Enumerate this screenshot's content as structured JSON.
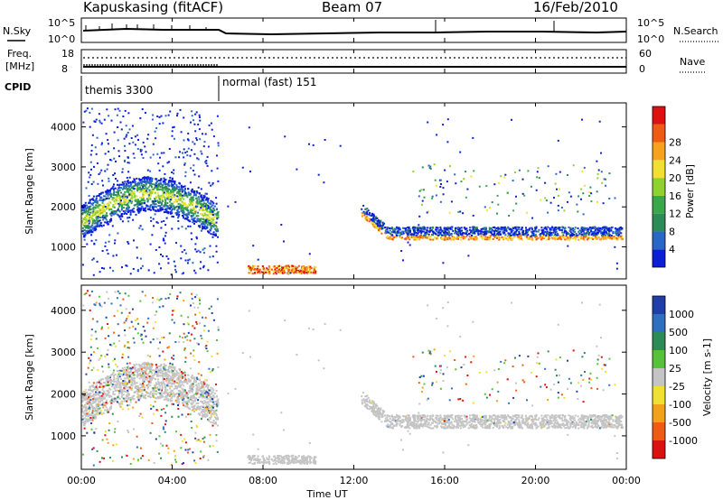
{
  "header": {
    "station": "Kapuskasing (fitACF)",
    "beam": "Beam 07",
    "date": "16/Feb/2010"
  },
  "top_panels": {
    "nsky_label": "N.Sky",
    "nsearch_label": "N.Search",
    "nsky_ticks": [
      "10^5",
      "10^0"
    ],
    "freq_label_1": "Freq.",
    "freq_label_2": "[MHz]",
    "freq_ticks": [
      "18",
      "8"
    ],
    "nave_ticks": [
      "60",
      "0"
    ],
    "nave_label": "Nave",
    "cpid_label": "CPID",
    "cpid_modes": [
      "themis 3300",
      "normal (fast) 151"
    ]
  },
  "x_axis": {
    "label": "Time UT",
    "ticks": [
      "00:00",
      "04:00",
      "08:00",
      "12:00",
      "16:00",
      "20:00",
      "00:00"
    ]
  },
  "power_colorbar": {
    "label": "Power [dB]",
    "ticks": [
      "4",
      "8",
      "12",
      "16",
      "20",
      "24",
      "28"
    ],
    "colors": [
      "#0b1fd8",
      "#2a66c8",
      "#2e8b57",
      "#3aa84a",
      "#8fd12e",
      "#f2e030",
      "#f7a21c",
      "#ef5a14",
      "#e01010"
    ]
  },
  "velocity_colorbar": {
    "label": "Velocity [m s-1]",
    "ticks": [
      "1000",
      "500",
      "100",
      "25",
      "-25",
      "-100",
      "-500",
      "-1000"
    ],
    "colors": [
      "#1f3ea8",
      "#2e6fc0",
      "#2e8b57",
      "#56c23a",
      "#c4c4c4",
      "#f0e030",
      "#f2a21a",
      "#ef5a14",
      "#dd1010"
    ]
  },
  "chart_data": [
    {
      "type": "heatmap",
      "title": "",
      "ylabel": "Slant Range [km]",
      "xlabel": "",
      "y_ticks": [
        "1000",
        "2000",
        "3000",
        "4000"
      ],
      "ylim": [
        200,
        4600
      ],
      "xlim_hours": [
        0,
        24
      ],
      "echo_regions": [
        {
          "t_start": 0.0,
          "t_end": 6.0,
          "range_min": 900,
          "range_max": 2800,
          "description": "arc"
        },
        {
          "t_start": 7.3,
          "t_end": 10.3,
          "range_min": 350,
          "range_max": 550,
          "description": "near range"
        },
        {
          "t_start": 12.4,
          "t_end": 22.5,
          "range_min": 1000,
          "range_max": 1800,
          "description": "band"
        },
        {
          "t_start": 22.5,
          "t_end": 24.0,
          "range_min": 1100,
          "range_max": 1700,
          "description": "band"
        }
      ]
    },
    {
      "type": "heatmap",
      "title": "",
      "ylabel": "Slant Range [km]",
      "xlabel": "Time UT",
      "y_ticks": [
        "1000",
        "2000",
        "3000",
        "4000"
      ],
      "ylim": [
        200,
        4600
      ],
      "xlim_hours": [
        0,
        24
      ],
      "dominant_velocity_bin": "-25 to 25"
    }
  ]
}
